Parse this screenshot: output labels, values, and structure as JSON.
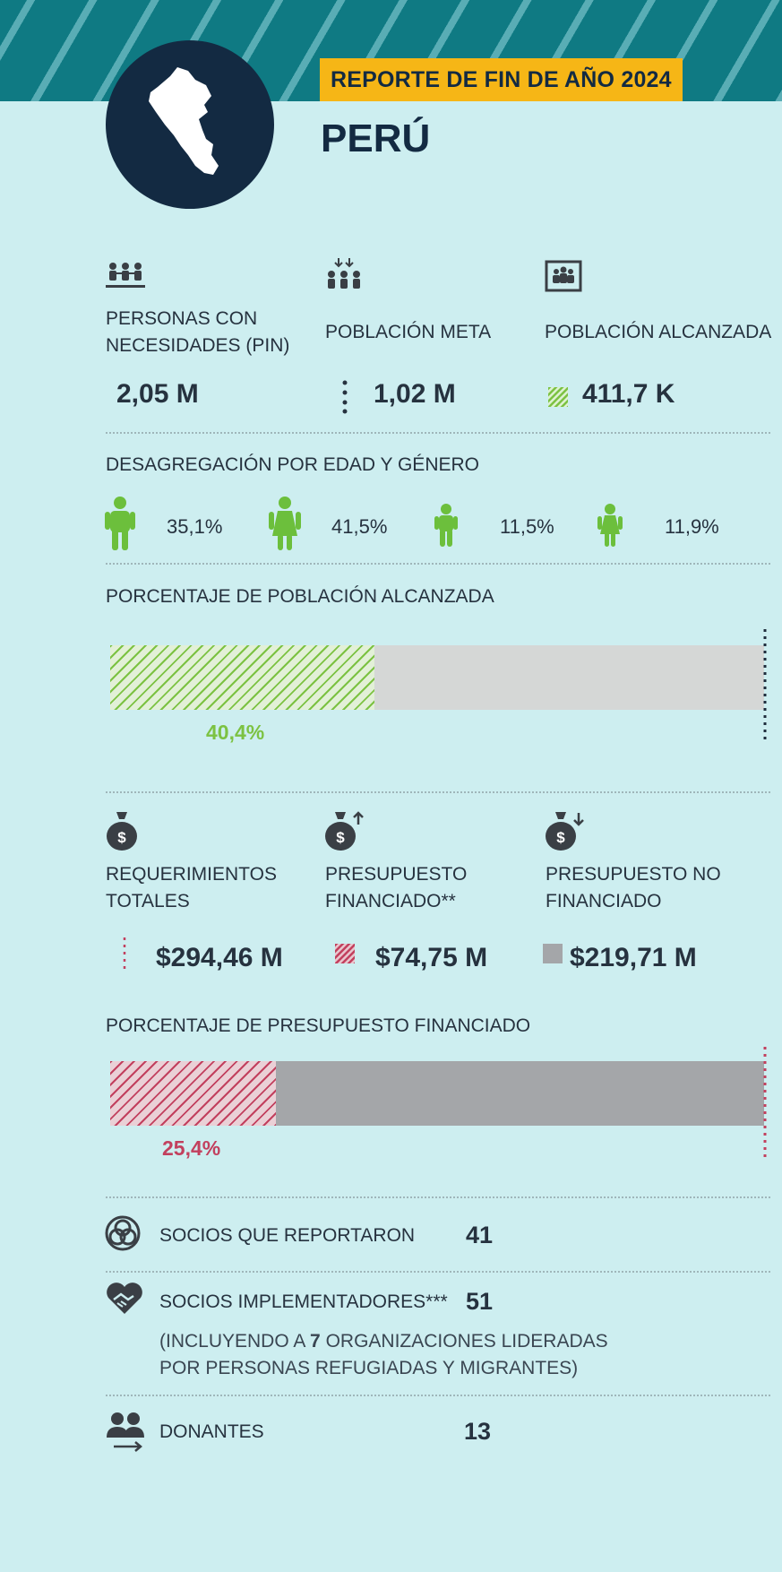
{
  "header": {
    "report_title": "REPORTE DE FIN DE AÑO 2024",
    "country": "PERÚ"
  },
  "population": {
    "pin": {
      "label": "PERSONAS CON NECESIDADES (PIN)",
      "value": "2,05 M"
    },
    "target": {
      "label": "POBLACIÓN META",
      "value": "1,02 M"
    },
    "reached": {
      "label": "POBLACIÓN ALCANZADA",
      "value": "411,7 K"
    }
  },
  "disaggregation": {
    "title": "DESAGREGACIÓN POR EDAD Y GÉNERO",
    "items": [
      {
        "group": "men",
        "value": "35,1%"
      },
      {
        "group": "women",
        "value": "41,5%"
      },
      {
        "group": "boys",
        "value": "11,5%"
      },
      {
        "group": "girls",
        "value": "11,9%"
      }
    ]
  },
  "reach_bar": {
    "title": "PORCENTAJE DE POBLACIÓN ALCANZADA",
    "value_label": "40,4%",
    "fraction": 0.404,
    "color": "#7cc242"
  },
  "budget": {
    "total": {
      "label": "REQUERIMIENTOS TOTALES",
      "value": "$294,46 M"
    },
    "funded": {
      "label": "PRESUPUESTO FINANCIADO**",
      "value": "$74,75 M"
    },
    "unfunded": {
      "label": "PRESUPUESTO NO FINANCIADO",
      "value": "$219,71 M"
    }
  },
  "funding_bar": {
    "title": "PORCENTAJE DE PRESUPUESTO FINANCIADO",
    "value_label": "25,4%",
    "fraction": 0.254,
    "color": "#c2405e"
  },
  "partners": {
    "reporting": {
      "label": "SOCIOS QUE REPORTARON",
      "value": "41"
    },
    "implementing": {
      "label": "SOCIOS IMPLEMENTADORES***",
      "value": "51",
      "note_prefix": "(INCLUYENDO A ",
      "note_number": "7",
      "note_line1_suffix": " ORGANIZACIONES LIDERADAS",
      "note_line2": "POR PERSONAS REFUGIADAS Y MIGRANTES)"
    },
    "donors": {
      "label": "DONANTES",
      "value": "13"
    }
  },
  "colors": {
    "teal_band": "#0f7a83",
    "navy": "#132a42",
    "yellow_badge": "#f6b616",
    "green": "#7cc242",
    "crimson": "#c2405e",
    "grey_light": "#d5d7d6",
    "grey_dark": "#a4a6a9",
    "background": "#cdeef0"
  }
}
